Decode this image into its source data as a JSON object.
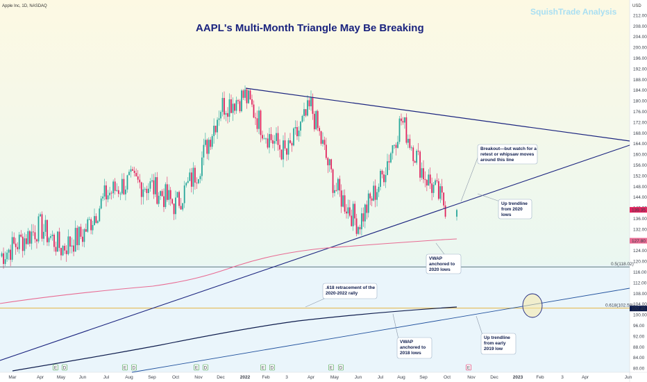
{
  "header": {
    "symbol": "Apple Inc, 1D, NASDAQ",
    "currency": "USD"
  },
  "title": "AAPL's Multi-Month Triangle May Be Breaking",
  "watermark": "SquishTrade Analysis",
  "colors": {
    "up": "#26a69a",
    "down": "#e0245e",
    "trend": "#1a237e",
    "vwap2020": "#e86a92",
    "vwap2018": "#0d1b4c",
    "fib618": "#e3b341",
    "fib05": "#2f4f4f",
    "trend2019": "#1e4f9c"
  },
  "chart_data": {
    "type": "candlestick",
    "title": "AAPL's Multi-Month Triangle May Be Breaking",
    "ylabel": "USD",
    "ylim": [
      80,
      212
    ],
    "yticks": [
      "212.00",
      "208.00",
      "204.00",
      "200.00",
      "196.00",
      "192.00",
      "188.00",
      "184.00",
      "180.00",
      "176.00",
      "172.00",
      "168.00",
      "164.00",
      "160.00",
      "156.00",
      "152.00",
      "148.00",
      "144.00",
      "140.00",
      "136.00",
      "132.00",
      "128.00",
      "124.00",
      "120.00",
      "116.00",
      "112.00",
      "108.00",
      "104.00",
      "100.00",
      "96.00",
      "92.00",
      "88.00",
      "84.00",
      "80.00"
    ],
    "xticks": [
      "Mar",
      "Apr",
      "May",
      "Jun",
      "Jul",
      "Aug",
      "Sep",
      "Oct",
      "Nov",
      "Dec",
      "2022",
      "Feb",
      "3",
      "Apr",
      "May",
      "Jun",
      "Jul",
      "Aug",
      "Sep",
      "Oct",
      "Nov",
      "Dec",
      "2023",
      "Feb",
      "3",
      "Apr",
      "Jun"
    ],
    "x_start": "2021-03",
    "price_path_monthly": [
      {
        "month": "2021-03",
        "price": 122
      },
      {
        "month": "2021-04",
        "price": 133
      },
      {
        "month": "2021-05",
        "price": 125
      },
      {
        "month": "2021-06",
        "price": 130
      },
      {
        "month": "2021-07",
        "price": 145
      },
      {
        "month": "2021-08",
        "price": 150
      },
      {
        "month": "2021-09",
        "price": 148
      },
      {
        "month": "2021-10",
        "price": 141
      },
      {
        "month": "2021-11",
        "price": 155
      },
      {
        "month": "2021-12",
        "price": 178
      },
      {
        "month": "2022-01",
        "price": 182
      },
      {
        "month": "2022-02",
        "price": 168
      },
      {
        "month": "2022-03",
        "price": 160
      },
      {
        "month": "2022-04",
        "price": 178
      },
      {
        "month": "2022-05",
        "price": 148
      },
      {
        "month": "2022-06",
        "price": 134
      },
      {
        "month": "2022-07",
        "price": 150
      },
      {
        "month": "2022-08",
        "price": 173
      },
      {
        "month": "2022-09",
        "price": 153
      },
      {
        "month": "2022-10",
        "price": 140
      }
    ],
    "last_price": "139.35",
    "vwap_2020_price": "127.80",
    "levels": [
      {
        "name": "0.5(118.02)",
        "value": 118.02
      },
      {
        "name": "0.618(102.59)",
        "value": 102.59
      },
      {
        "name": "102.45",
        "value": 102.45
      }
    ],
    "annotations": [
      {
        "lines": [
          "Breakout—but watch for a",
          "retest or whipsaw moves",
          "around this line"
        ]
      },
      {
        "lines": [
          "Up trendline",
          "from 2020",
          "lows"
        ]
      },
      {
        "lines": [
          "VWAP",
          "anchored to",
          "2020 lows"
        ]
      },
      {
        "lines": [
          ".618 retracement of the",
          "2020-2022 rally"
        ]
      },
      {
        "lines": [
          "VWAP",
          "anchored to",
          "2018 lows"
        ]
      },
      {
        "lines": [
          "Up trendline",
          "from early",
          "2019 low"
        ]
      }
    ],
    "event_markers": [
      "E",
      "D",
      "E",
      "D",
      "E",
      "D",
      "E",
      "D",
      "E",
      "D",
      "E"
    ]
  }
}
